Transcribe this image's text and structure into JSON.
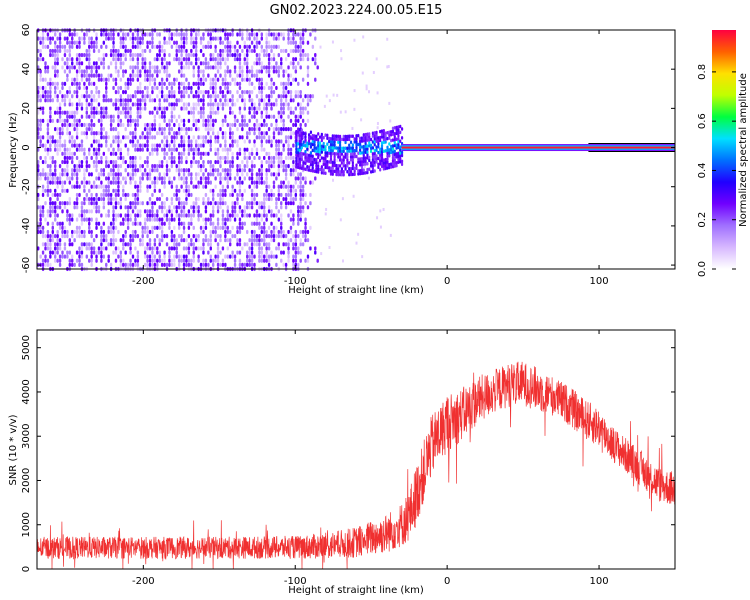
{
  "title": "GN02.2023.224.00.05.E15",
  "chart_data": [
    {
      "type": "heatmap",
      "xlabel": "Height of straight line (km)",
      "ylabel": "Frequency (Hz)",
      "xlim": [
        -270,
        150
      ],
      "ylim": [
        -62,
        60
      ],
      "x_ticks": [
        -200,
        -100,
        0,
        100
      ],
      "x_tick_labels": [
        "-200",
        "-100",
        "0",
        "100"
      ],
      "y_ticks": [
        60,
        40,
        20,
        0,
        -20,
        -40,
        -60
      ],
      "y_tick_labels": [
        "60",
        "40",
        "20",
        "0",
        "-20",
        "-40",
        "-60"
      ],
      "colorbar": {
        "label": "Normalized spectral amplitude",
        "range": [
          0,
          0.97
        ],
        "ticks": [
          0.0,
          0.2,
          0.4,
          0.6,
          0.8
        ],
        "tick_labels": [
          "0.0",
          "0.2",
          "0.4",
          "0.6",
          "0.8"
        ],
        "colormap": [
          "#ffffff",
          "#d7b8ff",
          "#a070ff",
          "#7000ff",
          "#2000ff",
          "#0070ff",
          "#00e0ff",
          "#00ff40",
          "#c0ff00",
          "#ffe000",
          "#ff6000",
          "#ff0040"
        ]
      },
      "regions": {
        "noise": {
          "x_from": -270,
          "x_to": -85,
          "dense_until": -100,
          "amplitude": [
            0.05,
            0.3
          ]
        },
        "transition": {
          "x_from": -100,
          "x_to": -30,
          "freq_band": [
            -10,
            10
          ],
          "amplitude": [
            0.2,
            0.5
          ]
        },
        "signal_line": {
          "x_from": -30,
          "x_to": 150,
          "freq": 0,
          "amplitude": [
            0.85,
            0.97
          ]
        }
      }
    },
    {
      "type": "line",
      "xlabel": "Height of straight line (km)",
      "ylabel": "SNR (10 * v/v)",
      "xlim": [
        -270,
        150
      ],
      "ylim": [
        0,
        5400
      ],
      "x_ticks": [
        -200,
        -100,
        0,
        100
      ],
      "x_tick_labels": [
        "-200",
        "-100",
        "0",
        "100"
      ],
      "y_ticks": [
        0,
        1000,
        2000,
        3000,
        4000,
        5000
      ],
      "y_tick_labels": [
        "0",
        "1000",
        "2000",
        "3000",
        "4000",
        "5000"
      ],
      "series": [
        {
          "color": "#f03030",
          "envelope_x": [
            -270,
            -200,
            -150,
            -100,
            -80,
            -60,
            -40,
            -30,
            -25,
            -20,
            -10,
            0,
            10,
            20,
            30,
            40,
            50,
            60,
            70,
            80,
            90,
            95,
            100,
            110,
            120,
            130,
            140,
            150
          ],
          "envelope_mean": [
            480,
            480,
            480,
            490,
            520,
            600,
            800,
            1000,
            1200,
            1700,
            2800,
            3300,
            3500,
            3800,
            4000,
            4150,
            4200,
            4050,
            3900,
            3700,
            3400,
            3300,
            3200,
            2800,
            2500,
            2200,
            1900,
            1800
          ],
          "envelope_spread": [
            250,
            250,
            250,
            260,
            300,
            350,
            450,
            500,
            600,
            700,
            700,
            650,
            600,
            550,
            500,
            500,
            500,
            500,
            450,
            450,
            450,
            450,
            450,
            400,
            400,
            400,
            400,
            400
          ]
        }
      ]
    }
  ]
}
